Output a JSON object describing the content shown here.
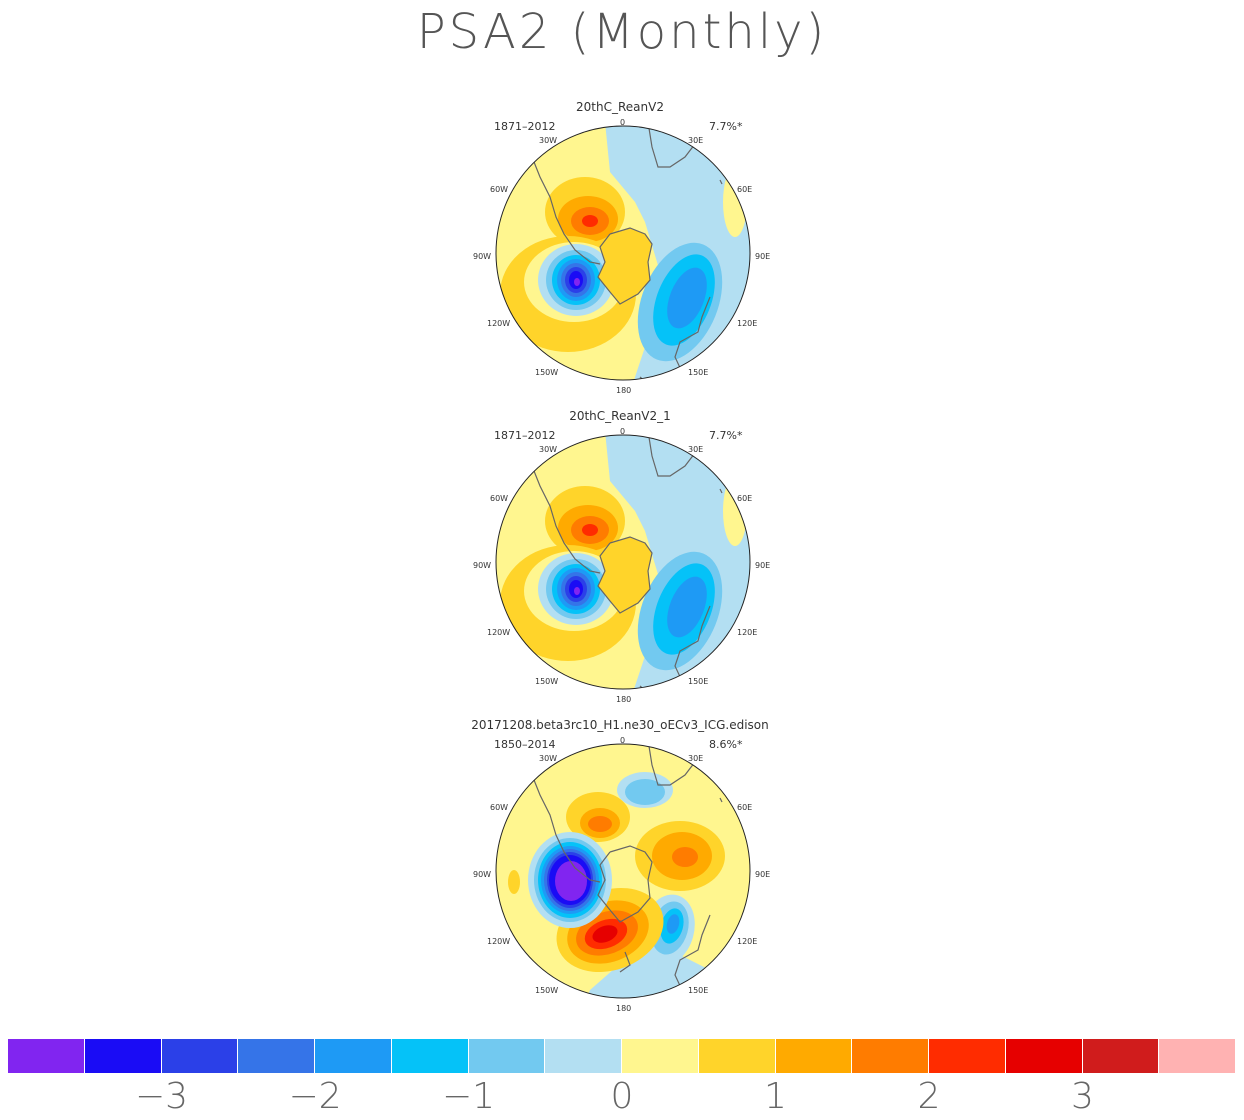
{
  "title": "PSA2 (Monthly)",
  "panels": [
    {
      "name": "20thC_ReanV2",
      "years": "1871–2012",
      "percent": "7.7%*"
    },
    {
      "name": "20thC_ReanV2_1",
      "years": "1871–2012",
      "percent": "7.7%*"
    },
    {
      "name": "20171208.beta3rc10_H1.ne30_oECv3_ICG.edison",
      "years": "1850–2014",
      "percent": "8.6%*"
    }
  ],
  "longitude_labels": {
    "l0": "0",
    "l30e": "30E",
    "l60e": "60E",
    "l90e": "90E",
    "l120e": "120E",
    "l150e": "150E",
    "l180": "180",
    "l150w": "150W",
    "l120w": "120W",
    "l90w": "90W",
    "l60w": "60W",
    "l30w": "30W"
  },
  "colorbar": {
    "colors": [
      "#8125f0",
      "#1a0cf5",
      "#2b40e8",
      "#3574e8",
      "#1e9af5",
      "#05c2f8",
      "#72c9f0",
      "#b3dff2",
      "#fff68f",
      "#ffd42a",
      "#ffaa00",
      "#ff7c00",
      "#ff2c00",
      "#e60000",
      "#d01c1c",
      "#ffb2b2"
    ],
    "labels": [
      "−3",
      "−2",
      "−1",
      "0",
      "1",
      "2",
      "3"
    ]
  }
}
